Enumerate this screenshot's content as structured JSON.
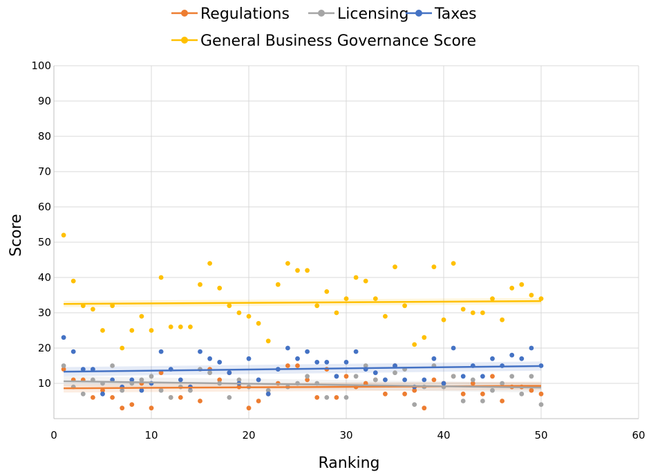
{
  "chart_data": {
    "type": "scatter",
    "title": "",
    "xlabel": "Ranking",
    "ylabel": "Score",
    "xlim": [
      0,
      60
    ],
    "ylim": [
      0,
      100
    ],
    "xticks": [
      "0",
      "10",
      "20",
      "30",
      "40",
      "50",
      "60"
    ],
    "yticks": [
      "10",
      "20",
      "30",
      "40",
      "50",
      "60",
      "70",
      "80",
      "90",
      "100"
    ],
    "grid": true,
    "legend_position": "top",
    "series": [
      {
        "name": "Regulations",
        "color": "#ed7d31",
        "x": [
          1,
          2,
          3,
          4,
          5,
          6,
          7,
          8,
          9,
          10,
          11,
          12,
          13,
          14,
          15,
          16,
          17,
          18,
          19,
          20,
          21,
          22,
          23,
          24,
          25,
          26,
          27,
          28,
          29,
          30,
          31,
          32,
          33,
          34,
          35,
          36,
          37,
          38,
          39,
          40,
          41,
          42,
          43,
          44,
          45,
          46,
          47,
          48,
          49,
          50
        ],
        "y": [
          14,
          11,
          11,
          6,
          8,
          6,
          3,
          4,
          10,
          3,
          13,
          6,
          6,
          9,
          5,
          14,
          11,
          13,
          9,
          3,
          5,
          7,
          10,
          15,
          15,
          11,
          6,
          14,
          6,
          12,
          9,
          10,
          11,
          7,
          15,
          7,
          8,
          3,
          11,
          10,
          12,
          7,
          10,
          7,
          12,
          5,
          9,
          9,
          8,
          7
        ],
        "trend": [
          8.6,
          9.3
        ]
      },
      {
        "name": "Licensing",
        "color": "#a5a5a5",
        "x": [
          1,
          2,
          3,
          4,
          5,
          6,
          7,
          8,
          9,
          10,
          11,
          12,
          13,
          14,
          15,
          16,
          17,
          18,
          19,
          20,
          21,
          22,
          23,
          24,
          25,
          26,
          27,
          28,
          29,
          30,
          31,
          32,
          33,
          34,
          35,
          36,
          37,
          38,
          39,
          40,
          41,
          42,
          43,
          44,
          45,
          46,
          47,
          48,
          49,
          50
        ],
        "y": [
          15,
          9,
          7,
          11,
          10,
          15,
          8,
          10,
          11,
          12,
          8,
          6,
          9,
          8,
          14,
          13,
          10,
          6,
          11,
          9,
          11,
          8,
          14,
          9,
          10,
          12,
          10,
          6,
          12,
          6,
          12,
          15,
          11,
          11,
          13,
          14,
          4,
          9,
          15,
          9,
          12,
          5,
          11,
          5,
          8,
          10,
          12,
          7,
          12,
          4
        ],
        "trend": [
          10.6,
          8.8
        ]
      },
      {
        "name": "Taxes",
        "color": "#4472c4",
        "x": [
          1,
          2,
          3,
          4,
          5,
          6,
          7,
          8,
          9,
          10,
          11,
          12,
          13,
          14,
          15,
          16,
          17,
          18,
          19,
          20,
          21,
          22,
          23,
          24,
          25,
          26,
          27,
          28,
          29,
          30,
          31,
          32,
          33,
          34,
          35,
          36,
          37,
          38,
          39,
          40,
          41,
          42,
          43,
          44,
          45,
          46,
          47,
          48,
          49,
          50
        ],
        "y": [
          23,
          19,
          14,
          14,
          7,
          11,
          9,
          11,
          8,
          10,
          19,
          14,
          11,
          9,
          19,
          17,
          16,
          13,
          10,
          17,
          11,
          7,
          14,
          20,
          17,
          19,
          16,
          16,
          12,
          16,
          19,
          14,
          13,
          11,
          15,
          11,
          9,
          11,
          17,
          10,
          20,
          12,
          15,
          12,
          17,
          15,
          18,
          17,
          20,
          15
        ],
        "trend": [
          13.3,
          14.9
        ]
      },
      {
        "name": "General Business Governance Score",
        "color": "#ffc000",
        "x": [
          1,
          2,
          3,
          4,
          5,
          6,
          7,
          8,
          9,
          10,
          11,
          12,
          13,
          14,
          15,
          16,
          17,
          18,
          19,
          20,
          21,
          22,
          23,
          24,
          25,
          26,
          27,
          28,
          29,
          30,
          31,
          32,
          33,
          34,
          35,
          36,
          37,
          38,
          39,
          40,
          41,
          42,
          43,
          44,
          45,
          46,
          47,
          48,
          49,
          50
        ],
        "y": [
          52,
          39,
          32,
          31,
          25,
          32,
          20,
          25,
          29,
          25,
          40,
          26,
          26,
          26,
          38,
          44,
          37,
          32,
          30,
          29,
          27,
          22,
          38,
          44,
          42,
          42,
          32,
          36,
          30,
          34,
          40,
          39,
          34,
          29,
          43,
          32,
          21,
          23,
          43,
          28,
          44,
          31,
          30,
          30,
          34,
          28,
          37,
          38,
          35,
          34
        ],
        "trend": [
          32.5,
          33.3
        ]
      }
    ]
  }
}
